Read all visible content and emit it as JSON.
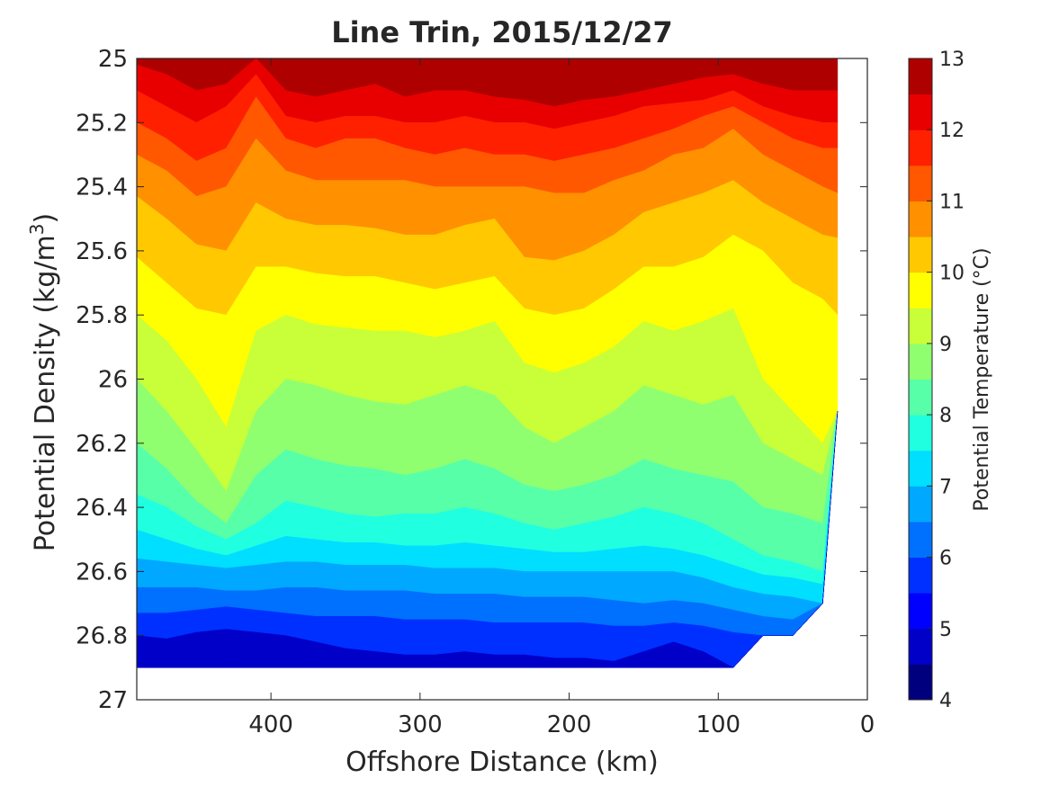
{
  "chart_data": {
    "type": "filled-contour",
    "title": "Line Trin, 2015/12/27",
    "xlabel": "Offshore Distance (km)",
    "ylabel_main": "Potential Density (kg/m",
    "ylabel_sup": "3",
    "ylabel_tail": ")",
    "xlim": [
      490,
      0
    ],
    "x_reversed": true,
    "ylim": [
      25,
      27
    ],
    "y_reversed": true,
    "xticks": [
      "400",
      "300",
      "200",
      "100",
      "0"
    ],
    "yticks": [
      "25",
      "25.2",
      "25.4",
      "25.6",
      "25.8",
      "26",
      "26.2",
      "26.4",
      "26.6",
      "26.8",
      "27"
    ],
    "colorbar": {
      "label": "Potential Temperature (°C)",
      "range": [
        4,
        13
      ],
      "level_step": 0.5,
      "ticks": [
        "4",
        "5",
        "6",
        "7",
        "8",
        "9",
        "10",
        "11",
        "12",
        "13"
      ],
      "colormap": "jet",
      "colors": [
        "#00007f",
        "#0000c8",
        "#0000ff",
        "#0030ff",
        "#0070ff",
        "#00a8ff",
        "#00dfff",
        "#20ffdf",
        "#57ffa8",
        "#8fff70",
        "#c8ff38",
        "#ffff00",
        "#ffc800",
        "#ff9000",
        "#ff5800",
        "#ff2000",
        "#e80000",
        "#af0000"
      ]
    },
    "x": [
      490,
      470,
      450,
      430,
      410,
      390,
      370,
      350,
      330,
      310,
      290,
      270,
      250,
      230,
      210,
      190,
      170,
      150,
      130,
      110,
      90,
      70,
      50,
      30,
      20
    ],
    "max_density": [
      26.9,
      26.9,
      26.9,
      26.9,
      26.9,
      26.9,
      26.9,
      26.9,
      26.9,
      26.9,
      26.9,
      26.9,
      26.9,
      26.9,
      26.9,
      26.9,
      26.9,
      26.9,
      26.9,
      26.9,
      26.9,
      26.8,
      26.8,
      26.7,
      26.1
    ],
    "isopycnal_depths": [
      {
        "temperature": 12.0,
        "density": [
          25.02,
          25.05,
          25.1,
          25.08,
          25.0,
          25.1,
          25.12,
          25.1,
          25.08,
          25.12,
          25.1,
          25.1,
          25.12,
          25.13,
          25.15,
          25.13,
          25.12,
          25.1,
          25.08,
          25.06,
          25.05,
          25.08,
          25.1,
          25.1,
          25.1
        ]
      },
      {
        "temperature": 11.5,
        "density": [
          25.1,
          25.15,
          25.2,
          25.15,
          25.05,
          25.18,
          25.2,
          25.18,
          25.18,
          25.2,
          25.2,
          25.18,
          25.2,
          25.2,
          25.22,
          25.2,
          25.18,
          25.15,
          25.14,
          25.13,
          25.1,
          25.15,
          25.18,
          25.2,
          25.2
        ]
      },
      {
        "temperature": 11.0,
        "density": [
          25.2,
          25.25,
          25.32,
          25.28,
          25.12,
          25.25,
          25.28,
          25.25,
          25.25,
          25.28,
          25.3,
          25.28,
          25.3,
          25.3,
          25.32,
          25.3,
          25.28,
          25.25,
          25.22,
          25.18,
          25.15,
          25.2,
          25.25,
          25.28,
          25.28
        ]
      },
      {
        "temperature": 10.5,
        "density": [
          25.3,
          25.35,
          25.43,
          25.4,
          25.25,
          25.35,
          25.38,
          25.38,
          25.38,
          25.38,
          25.4,
          25.4,
          25.4,
          25.4,
          25.42,
          25.42,
          25.38,
          25.35,
          25.3,
          25.28,
          25.22,
          25.3,
          25.35,
          25.4,
          25.42
        ]
      },
      {
        "temperature": 10.0,
        "density": [
          25.43,
          25.5,
          25.58,
          25.6,
          25.45,
          25.5,
          25.52,
          25.52,
          25.53,
          25.55,
          25.55,
          25.52,
          25.5,
          25.62,
          25.63,
          25.6,
          25.55,
          25.48,
          25.45,
          25.42,
          25.38,
          25.45,
          25.5,
          25.55,
          25.56
        ]
      },
      {
        "temperature": 9.5,
        "density": [
          25.62,
          25.7,
          25.78,
          25.8,
          25.65,
          25.65,
          25.67,
          25.68,
          25.68,
          25.7,
          25.72,
          25.7,
          25.68,
          25.78,
          25.8,
          25.78,
          25.72,
          25.65,
          25.65,
          25.62,
          25.55,
          25.6,
          25.7,
          25.75,
          25.8
        ]
      },
      {
        "temperature": 9.0,
        "density": [
          25.8,
          25.88,
          26.0,
          26.15,
          25.85,
          25.8,
          25.83,
          25.84,
          25.85,
          25.85,
          25.87,
          25.85,
          25.82,
          25.95,
          25.98,
          25.95,
          25.9,
          25.82,
          25.85,
          25.82,
          25.78,
          26.0,
          26.1,
          26.2,
          26.3
        ]
      },
      {
        "temperature": 8.5,
        "density": [
          26.0,
          26.1,
          26.22,
          26.35,
          26.1,
          26.0,
          26.02,
          26.05,
          26.07,
          26.08,
          26.05,
          26.02,
          26.05,
          26.15,
          26.2,
          26.15,
          26.1,
          26.02,
          26.05,
          26.08,
          26.05,
          26.2,
          26.25,
          26.3,
          26.35
        ]
      },
      {
        "temperature": 8.0,
        "density": [
          26.2,
          26.28,
          26.38,
          26.45,
          26.3,
          26.22,
          26.25,
          26.27,
          26.28,
          26.3,
          26.28,
          26.25,
          26.28,
          26.33,
          26.35,
          26.33,
          26.3,
          26.25,
          26.28,
          26.3,
          26.32,
          26.4,
          26.42,
          26.45,
          26.5
        ]
      },
      {
        "temperature": 7.5,
        "density": [
          26.36,
          26.4,
          26.46,
          26.5,
          26.45,
          26.38,
          26.4,
          26.42,
          26.43,
          26.42,
          26.42,
          26.4,
          26.42,
          26.45,
          26.47,
          26.45,
          26.43,
          26.4,
          26.42,
          26.45,
          26.5,
          26.55,
          26.57,
          26.6,
          26.62
        ]
      },
      {
        "temperature": 7.0,
        "density": [
          26.47,
          26.5,
          26.53,
          26.55,
          26.52,
          26.49,
          26.5,
          26.51,
          26.51,
          26.52,
          26.52,
          26.51,
          26.52,
          26.53,
          26.54,
          26.54,
          26.53,
          26.52,
          26.53,
          26.55,
          26.58,
          26.61,
          26.62,
          26.64,
          26.66
        ]
      },
      {
        "temperature": 6.5,
        "density": [
          26.56,
          26.57,
          26.58,
          26.59,
          26.58,
          26.57,
          26.57,
          26.58,
          26.58,
          26.58,
          26.59,
          26.59,
          26.59,
          26.6,
          26.6,
          26.6,
          26.6,
          26.6,
          26.6,
          26.62,
          26.65,
          26.67,
          26.68,
          26.7,
          26.72
        ]
      },
      {
        "temperature": 6.0,
        "density": [
          26.65,
          26.65,
          26.65,
          26.66,
          26.66,
          26.65,
          26.65,
          26.66,
          26.66,
          26.66,
          26.67,
          26.67,
          26.67,
          26.68,
          26.68,
          26.68,
          26.69,
          26.7,
          26.69,
          26.7,
          26.72,
          26.74,
          26.75,
          26.76,
          26.78
        ]
      },
      {
        "temperature": 5.5,
        "density": [
          26.73,
          26.73,
          26.72,
          26.71,
          26.72,
          26.73,
          26.74,
          26.74,
          26.74,
          26.75,
          26.75,
          26.75,
          26.76,
          26.76,
          26.76,
          26.76,
          26.77,
          26.77,
          26.76,
          26.77,
          26.79,
          26.8,
          26.8,
          26.8,
          26.8
        ]
      },
      {
        "temperature": 5.0,
        "density": [
          26.8,
          26.81,
          26.79,
          26.78,
          26.79,
          26.8,
          26.82,
          26.84,
          26.85,
          26.86,
          26.86,
          26.85,
          26.86,
          26.86,
          26.87,
          26.87,
          26.88,
          26.85,
          26.82,
          26.85,
          26.9,
          26.9,
          26.9,
          26.9,
          26.9
        ]
      }
    ]
  }
}
